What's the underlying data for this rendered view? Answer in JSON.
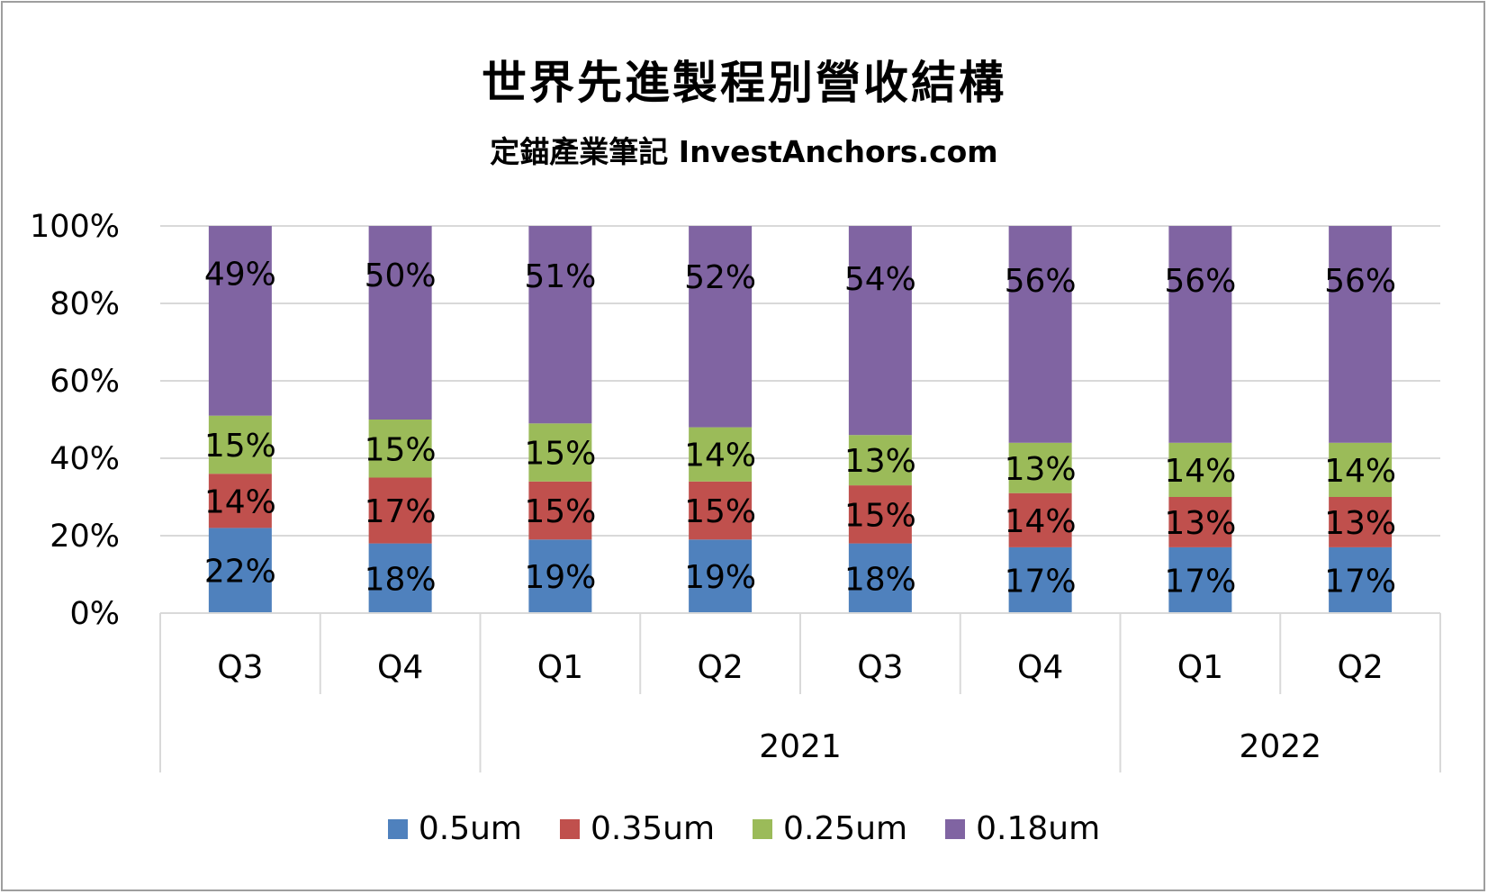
{
  "chart_data": {
    "type": "bar",
    "stacked": true,
    "title": "世界先進製程別營收結構",
    "subtitle": "定錨產業筆記 InvestAnchors.com",
    "categories": [
      "Q3",
      "Q4",
      "Q1",
      "Q2",
      "Q3",
      "Q4",
      "Q1",
      "Q2"
    ],
    "category_groups": [
      {
        "label": "",
        "span": 2
      },
      {
        "label": "2021",
        "span": 4
      },
      {
        "label": "2022",
        "span": 2
      }
    ],
    "series": [
      {
        "name": "0.5um",
        "color": "#4f81bd",
        "values": [
          22,
          18,
          19,
          19,
          18,
          17,
          17,
          17
        ]
      },
      {
        "name": "0.35um",
        "color": "#c0504d",
        "values": [
          14,
          17,
          15,
          15,
          15,
          14,
          13,
          13
        ]
      },
      {
        "name": "0.25um",
        "color": "#9bbb59",
        "values": [
          15,
          15,
          15,
          14,
          13,
          13,
          14,
          14
        ]
      },
      {
        "name": "0.18um",
        "color": "#8064a2",
        "values": [
          49,
          50,
          51,
          52,
          54,
          56,
          56,
          56
        ]
      }
    ],
    "y_ticks": [
      "0%",
      "20%",
      "40%",
      "60%",
      "80%",
      "100%"
    ],
    "ylim": [
      0,
      100
    ],
    "grid": true,
    "legend_position": "bottom",
    "data_labels": true
  }
}
